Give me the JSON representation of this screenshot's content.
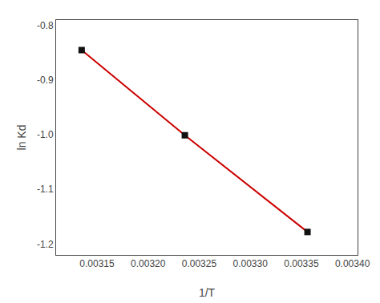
{
  "chart_data": {
    "type": "line",
    "x": [
      0.003135,
      0.003236,
      0.003356
    ],
    "values": [
      -0.845,
      -1.001,
      -1.178
    ],
    "color": "#cc0000",
    "colors": [
      "#111111",
      "#111111",
      "#111111"
    ],
    "marker": "square",
    "xlabel": "1/T",
    "ylabel": "ln Kd",
    "xlim": [
      0.00311,
      0.003405
    ],
    "ylim": [
      -1.22,
      -0.79
    ],
    "xticks": [
      0.00315,
      {
        "value": 0.0032,
        "label": "0.00320"
      },
      0.00325,
      {
        "value": 0.0033,
        "label": "0.00330"
      },
      0.00335,
      {
        "value": 0.0034,
        "label": "0.00340"
      }
    ],
    "yticks": [
      -1.2,
      -1.1,
      {
        "value": -1,
        "label": "-1.0"
      },
      -0.9,
      -0.8
    ],
    "grid": false
  }
}
